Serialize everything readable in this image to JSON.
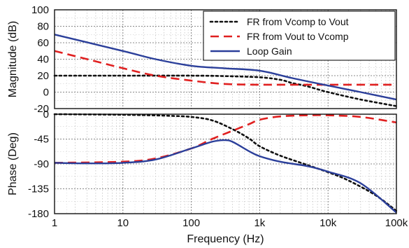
{
  "chart_data": [
    {
      "type": "line",
      "panel": "magnitude",
      "ylabel": "Magnitude (dB)",
      "xscale": "log",
      "xlim": [
        1,
        100000
      ],
      "ylim": [
        -20,
        100
      ],
      "yticks": [
        "100",
        "80",
        "60",
        "40",
        "20",
        "0",
        "-20"
      ],
      "grid": true,
      "legend_position": "top-right",
      "series": [
        {
          "name": "FR from Vcomp to Vout",
          "style": "dotted",
          "color": "#111111",
          "x": [
            1,
            10,
            100,
            300,
            1000,
            2000,
            3000,
            5000,
            10000,
            30000,
            100000
          ],
          "y": [
            20,
            20,
            20,
            19.5,
            18,
            15,
            11,
            7,
            0,
            -9,
            -17
          ]
        },
        {
          "name": "FR from Vout to Vcomp",
          "style": "dashed",
          "color": "#e02020",
          "x": [
            1,
            3,
            10,
            30,
            100,
            300,
            1000,
            10000,
            100000
          ],
          "y": [
            50,
            40,
            29,
            20,
            14,
            10,
            9,
            9,
            9
          ]
        },
        {
          "name": "Loop Gain",
          "style": "solid",
          "color": "#2b3f9a",
          "x": [
            1,
            10,
            30,
            100,
            300,
            1000,
            3000,
            10000,
            30000,
            100000
          ],
          "y": [
            70,
            50,
            40,
            32,
            29,
            26,
            17,
            8,
            0,
            -9
          ]
        }
      ]
    },
    {
      "type": "line",
      "panel": "phase",
      "ylabel": "Phase (Deg)",
      "xlabel": "Frequency (Hz)",
      "xscale": "log",
      "xlim": [
        1,
        100000
      ],
      "ylim": [
        -180,
        0
      ],
      "yticks": [
        "0",
        "-45",
        "-90",
        "-135",
        "-180"
      ],
      "xticks": [
        "1",
        "10",
        "100",
        "1k",
        "10k",
        "100k"
      ],
      "grid": true,
      "series": [
        {
          "name": "FR from Vcomp to Vout",
          "style": "dotted",
          "color": "#111111",
          "x": [
            1,
            10,
            50,
            100,
            200,
            400,
            700,
            1000,
            2000,
            5000,
            10000,
            20000,
            50000,
            100000
          ],
          "y": [
            0,
            -1,
            -3,
            -5,
            -11,
            -27,
            -44,
            -58,
            -75,
            -92,
            -105,
            -120,
            -147,
            -175
          ]
        },
        {
          "name": "FR from Vout to Vcomp",
          "style": "dashed",
          "color": "#e02020",
          "x": [
            1,
            10,
            30,
            100,
            200,
            400,
            700,
            1000,
            2000,
            5000,
            10000,
            30000,
            100000
          ],
          "y": [
            -88,
            -86,
            -80,
            -62,
            -45,
            -30,
            -18,
            -10,
            -4,
            -2,
            -2,
            -5,
            -15
          ]
        },
        {
          "name": "Loop Gain",
          "style": "solid",
          "color": "#2b3f9a",
          "x": [
            1,
            3,
            10,
            30,
            100,
            200,
            300,
            400,
            700,
            1000,
            2000,
            5000,
            10000,
            30000,
            100000
          ],
          "y": [
            -88,
            -89,
            -88,
            -82,
            -62,
            -50,
            -47,
            -50,
            -67,
            -76,
            -86,
            -94,
            -104,
            -125,
            -178
          ]
        }
      ]
    }
  ]
}
